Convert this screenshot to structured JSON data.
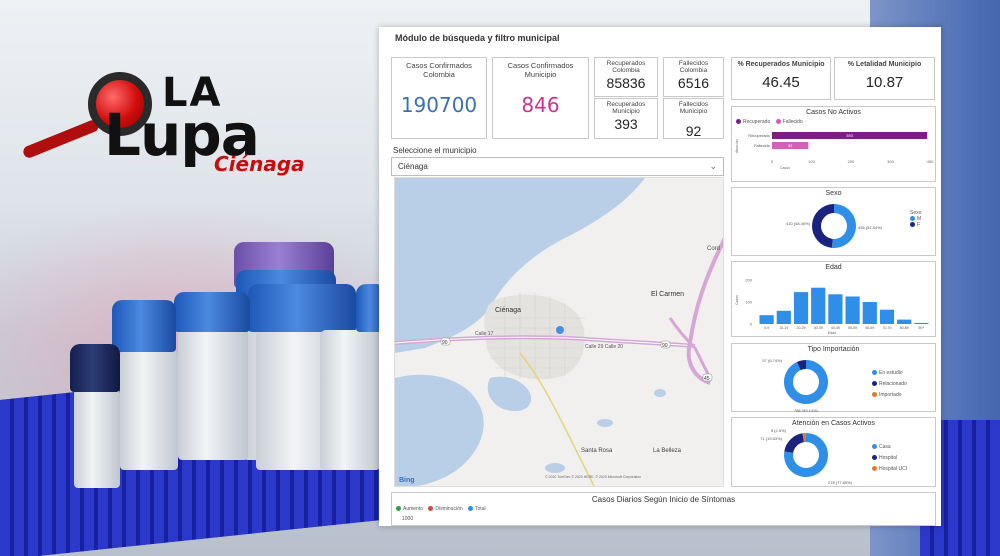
{
  "logo": {
    "la": "LA",
    "lupa": "Lupa",
    "city": "Ciénaga"
  },
  "dashboard": {
    "title": "Módulo de búsqueda y filtro municipal",
    "kpis": {
      "casos_colombia": {
        "label": "Casos Confirmados Colombia",
        "value": "190700"
      },
      "casos_municipio": {
        "label": "Casos Confirmados Municipio",
        "value": "846"
      },
      "recuperados_colombia": {
        "label": "Recuperados Colombia",
        "value": "85836"
      },
      "fallecidos_colombia": {
        "label": "Fallecidos Colombia",
        "value": "6516"
      },
      "recuperados_municipio": {
        "label": "Recuperados Municipio",
        "value": "393"
      },
      "fallecidos_municipio": {
        "label": "Fallecidos Municipio",
        "value": "92"
      },
      "pct_recuperados": {
        "label": "% Recuperados Municipio",
        "value": "46.45"
      },
      "pct_letalidad": {
        "label": "% Letalidad Municipio",
        "value": "10.87"
      }
    },
    "slicer": {
      "label": "Seleccione el municipio",
      "value": "Ciénaga"
    },
    "map": {
      "labels": [
        "Ciénaga",
        "El Carmen",
        "Santa Rosa",
        "La Belleza",
        "Calle 17",
        "Calle 29 Calle 20",
        "Cord"
      ],
      "route_numbers": [
        "90",
        "90",
        "90",
        "45",
        "45"
      ],
      "provider": "Bing",
      "copyright": "© 2020 TomTom © 2020 HERE, © 2020 Microsoft Corporation"
    },
    "colors": {
      "blue_value": "#3b6fb6",
      "pink_value": "#d0318f",
      "purple_bar": "#7b1f86",
      "pink_bar": "#d45fb7",
      "donut_blue": "#2f8fe8",
      "donut_navy": "#1a237e",
      "bar_blue": "#2f8fe8"
    },
    "no_activos": {
      "title": "Casos No Activos",
      "legend": [
        "Recuperado",
        "Fallecido"
      ],
      "axis_label": "Atención",
      "xlabel": "Casos",
      "ticks": [
        "0",
        "100",
        "200",
        "300",
        "400"
      ]
    },
    "sexo": {
      "title": "Sexo",
      "legend_title": "Sexo",
      "legend": [
        "M",
        "F"
      ]
    },
    "edad": {
      "title": "Edad",
      "ylabel": "Casos",
      "xlabel": "Edad",
      "yticks": [
        "200",
        "100",
        "0"
      ]
    },
    "importacion": {
      "title": "Tipo Importación",
      "legend": [
        "En estudio",
        "Relacionado",
        "Importado"
      ]
    },
    "atencion": {
      "title": "Atención en Casos Activos",
      "legend": [
        "Casa",
        "Hospital",
        "Hospital UCI"
      ]
    },
    "diarios": {
      "title": "Casos Diarios Según Inicio de Síntomas",
      "legend": [
        "Aumento",
        "Disminución",
        "Total"
      ],
      "ytick": "1000"
    }
  },
  "chart_data": [
    {
      "type": "bar",
      "title": "Casos No Activos",
      "orientation": "horizontal",
      "categories": [
        "Recuperado",
        "Fallecido"
      ],
      "values": [
        393,
        92
      ],
      "xlabel": "Casos",
      "xlim": [
        0,
        400
      ]
    },
    {
      "type": "pie",
      "title": "Sexo",
      "categories": [
        "M",
        "F"
      ],
      "values": [
        436,
        410
      ],
      "labels": [
        "436 (51.54%)",
        "410 (48.46%)"
      ]
    },
    {
      "type": "bar",
      "title": "Edad",
      "categories": [
        "0-9",
        "10-19",
        "20-29",
        "30-39",
        "40-49",
        "50-59",
        "60-69",
        "70-79",
        "80-89",
        "90+"
      ],
      "values": [
        40,
        60,
        145,
        165,
        135,
        125,
        100,
        65,
        20,
        5
      ],
      "ylim": [
        0,
        200
      ],
      "xlabel": "Edad",
      "ylabel": "Casos"
    },
    {
      "type": "pie",
      "title": "Tipo Importación",
      "categories": [
        "En estudio",
        "Relacionado"
      ],
      "values": [
        788,
        57
      ],
      "labels": [
        "788 (93.14%)",
        "57 (6.74%)"
      ]
    },
    {
      "type": "pie",
      "title": "Atención en Casos Activos",
      "categories": [
        "Casa",
        "Hospital",
        "Hospital UCI"
      ],
      "values": [
        278,
        71,
        9
      ],
      "labels": [
        "278 (77.65%)",
        "71 (19.83%)",
        "9 (2.5%)"
      ]
    }
  ]
}
